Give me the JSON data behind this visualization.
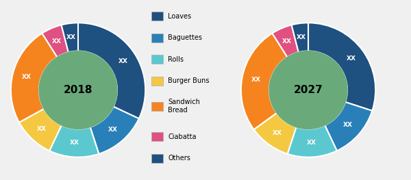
{
  "chart_2018": {
    "year": "2018",
    "values": [
      32,
      13,
      12,
      10,
      24,
      5,
      4
    ],
    "colors": [
      "#1e5080",
      "#2980b9",
      "#5bc8d0",
      "#f5c842",
      "#f5841f",
      "#e05080",
      "#1e5080"
    ]
  },
  "chart_2027": {
    "year": "2027",
    "values": [
      30,
      13,
      12,
      10,
      26,
      5,
      4
    ],
    "colors": [
      "#1e5080",
      "#2980b9",
      "#5bc8d0",
      "#f5c842",
      "#f5841f",
      "#e05080",
      "#1e5080"
    ]
  },
  "legend_labels": [
    "Loaves",
    "Baguettes",
    "Rolls",
    "Burger Buns",
    "Sandwich\nBread",
    "Ciabatta",
    "Others"
  ],
  "legend_colors": [
    "#1e5080",
    "#2980b9",
    "#5bc8d0",
    "#f5c842",
    "#f5841f",
    "#e05080",
    "#1e5080"
  ],
  "label_text": "XX",
  "label_color": "white",
  "label_fontsize": 6.5,
  "year_fontsize": 11,
  "year_fontweight": "bold",
  "year_color": "black",
  "background_color": "#f0f0f0",
  "inner_bg_color": "#6aaa7a",
  "wedge_edgecolor": "white",
  "wedge_linewidth": 1.5,
  "donut_width": 0.42,
  "startangle": 90
}
